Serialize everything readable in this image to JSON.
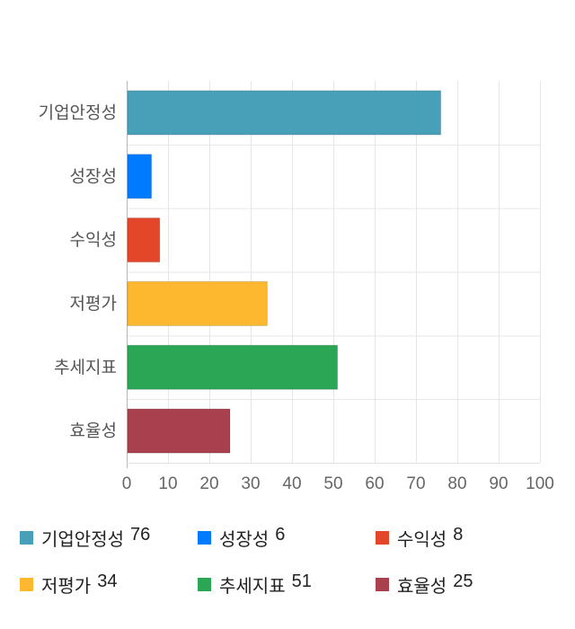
{
  "chart_data": {
    "type": "bar",
    "orientation": "horizontal",
    "categories": [
      "기업안정성",
      "성장성",
      "수익성",
      "저평가",
      "추세지표",
      "효율성"
    ],
    "values": [
      76,
      6,
      8,
      34,
      51,
      25
    ],
    "colors": [
      "#48a0b8",
      "#007bff",
      "#e4462a",
      "#fdb830",
      "#2ba655",
      "#a8404d"
    ],
    "xlim": [
      0,
      100
    ],
    "xticks": [
      0,
      10,
      20,
      30,
      40,
      50,
      60,
      70,
      80,
      90,
      100
    ],
    "grid": true,
    "legend_position": "bottom"
  }
}
